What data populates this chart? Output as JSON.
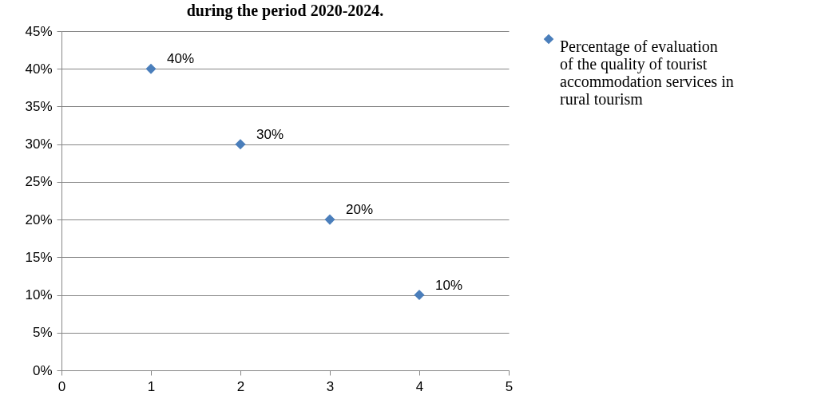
{
  "chart_data": {
    "type": "scatter",
    "title": "during the period 2020-2024.",
    "x": [
      1,
      2,
      3,
      4
    ],
    "series": [
      {
        "name": "Percentage of evaluation of the quality of tourist accommodation services in rural tourism",
        "color": "#4a7ebb",
        "values": [
          40,
          30,
          20,
          10
        ],
        "value_labels": [
          "40%",
          "30%",
          "20%",
          "10%"
        ]
      }
    ],
    "xlim": [
      0,
      5
    ],
    "xticks": [
      0,
      1,
      2,
      3,
      4,
      5
    ],
    "ylim": [
      0,
      45
    ],
    "yticks": [
      {
        "value": 0,
        "label": "0%"
      },
      {
        "value": 5,
        "label": "5%"
      },
      {
        "value": 10,
        "label": "10%"
      },
      {
        "value": 15,
        "label": "15%"
      },
      {
        "value": 20,
        "label": "20%"
      },
      {
        "value": 25,
        "label": "25%"
      },
      {
        "value": 30,
        "label": "30%"
      },
      {
        "value": 35,
        "label": "35%"
      },
      {
        "value": 40,
        "label": "40%"
      },
      {
        "value": 45,
        "label": "45%"
      }
    ],
    "grid": "y",
    "legend": "right",
    "marker": "diamond"
  }
}
